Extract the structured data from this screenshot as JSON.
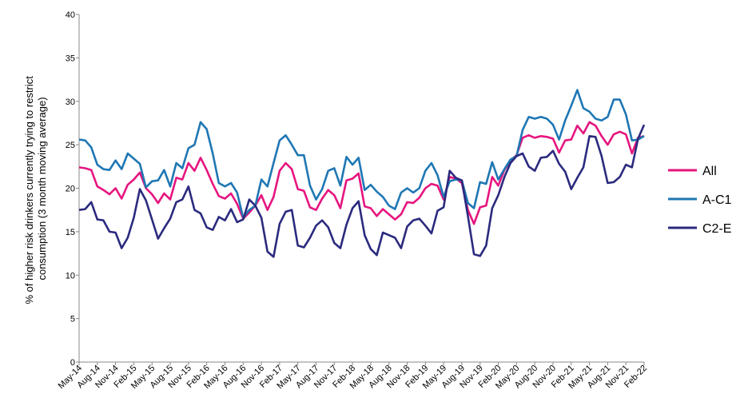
{
  "chart_data": {
    "type": "line",
    "ylabel": "% of higher risk drinkers currently trying to restrict consumption (3 month moving average)",
    "ylabel_lines": [
      "% of higher risk drinkers currently trying to restrict",
      "consumption (3 month moving average)"
    ],
    "ylim": [
      0,
      40
    ],
    "yticks": [
      0,
      5,
      10,
      15,
      20,
      25,
      30,
      35,
      40
    ],
    "x_tick_labels": [
      "May-14",
      "Aug-14",
      "Nov-14",
      "Feb-15",
      "May-15",
      "Aug-15",
      "Nov-15",
      "Feb-16",
      "May-16",
      "Aug-16",
      "Nov-16",
      "Feb-17",
      "May-17",
      "Aug-17",
      "Nov-17",
      "Feb-18",
      "May-18",
      "Aug-18",
      "Nov-18",
      "Feb-19",
      "May-19",
      "Aug-19",
      "Nov-19",
      "Feb-20",
      "May-20",
      "Aug-20",
      "Nov-20",
      "Feb-21",
      "May-21",
      "Aug-21",
      "Nov-21",
      "Feb-22"
    ],
    "x": [
      "May-14",
      "Jun-14",
      "Jul-14",
      "Aug-14",
      "Sep-14",
      "Oct-14",
      "Nov-14",
      "Dec-14",
      "Jan-15",
      "Feb-15",
      "Mar-15",
      "Apr-15",
      "May-15",
      "Jun-15",
      "Jul-15",
      "Aug-15",
      "Sep-15",
      "Oct-15",
      "Nov-15",
      "Dec-15",
      "Jan-16",
      "Feb-16",
      "Mar-16",
      "Apr-16",
      "May-16",
      "Jun-16",
      "Jul-16",
      "Aug-16",
      "Sep-16",
      "Oct-16",
      "Nov-16",
      "Dec-16",
      "Jan-17",
      "Feb-17",
      "Mar-17",
      "Apr-17",
      "May-17",
      "Jun-17",
      "Jul-17",
      "Aug-17",
      "Sep-17",
      "Oct-17",
      "Nov-17",
      "Dec-17",
      "Jan-18",
      "Feb-18",
      "Mar-18",
      "Apr-18",
      "May-18",
      "Jun-18",
      "Jul-18",
      "Aug-18",
      "Sep-18",
      "Oct-18",
      "Nov-18",
      "Dec-18",
      "Jan-19",
      "Feb-19",
      "Mar-19",
      "Apr-19",
      "May-19",
      "Jun-19",
      "Jul-19",
      "Aug-19",
      "Sep-19",
      "Oct-19",
      "Nov-19",
      "Dec-19",
      "Jan-20",
      "Feb-20",
      "Mar-20",
      "Apr-20",
      "May-20",
      "Jun-20",
      "Jul-20",
      "Aug-20",
      "Sep-20",
      "Oct-20",
      "Nov-20",
      "Dec-20",
      "Jan-21",
      "Feb-21",
      "Mar-21",
      "Apr-21",
      "May-21",
      "Jun-21",
      "Jul-21",
      "Aug-21",
      "Sep-21",
      "Oct-21",
      "Nov-21",
      "Dec-21",
      "Jan-22",
      "Feb-22"
    ],
    "series": [
      {
        "name": "All",
        "color": "#e6157f",
        "values": [
          22.4,
          22.3,
          22.1,
          20.2,
          19.8,
          19.3,
          20.0,
          18.8,
          20.4,
          21.0,
          21.8,
          20.0,
          19.3,
          18.3,
          19.4,
          18.7,
          21.2,
          21.0,
          22.9,
          22.0,
          23.5,
          22.1,
          20.5,
          19.1,
          18.8,
          19.4,
          18.2,
          16.5,
          17.2,
          18.0,
          19.2,
          17.5,
          19.0,
          22.0,
          22.9,
          22.2,
          19.9,
          19.7,
          17.8,
          17.5,
          18.8,
          19.8,
          19.2,
          17.7,
          20.9,
          21.1,
          21.7,
          17.9,
          17.7,
          16.8,
          17.6,
          17.0,
          16.4,
          17.0,
          18.4,
          18.3,
          18.9,
          20.0,
          20.5,
          20.3,
          18.7,
          21.3,
          21.1,
          20.6,
          17.5,
          15.9,
          17.8,
          18.0,
          21.3,
          20.3,
          22.1,
          23.2,
          23.8,
          25.8,
          26.1,
          25.8,
          26.0,
          25.9,
          25.7,
          24.1,
          25.5,
          25.6,
          27.2,
          26.3,
          27.6,
          27.2,
          26.0,
          25.0,
          26.2,
          26.5,
          26.2,
          24.0,
          25.8,
          26.0
        ]
      },
      {
        "name": "A-C1",
        "color": "#1f77b4",
        "values": [
          25.6,
          25.5,
          24.7,
          22.7,
          22.2,
          22.1,
          23.2,
          22.2,
          24.0,
          23.4,
          22.8,
          20.1,
          20.8,
          20.9,
          22.1,
          20.2,
          22.9,
          22.3,
          24.6,
          25.0,
          27.6,
          26.8,
          24.0,
          20.6,
          20.2,
          20.6,
          19.5,
          16.6,
          17.5,
          18.0,
          21.0,
          20.2,
          22.9,
          25.5,
          26.1,
          25.0,
          23.8,
          23.8,
          20.3,
          18.7,
          19.9,
          22.0,
          22.3,
          20.3,
          23.6,
          22.7,
          23.5,
          19.8,
          20.4,
          19.6,
          19.0,
          18.0,
          17.6,
          19.5,
          20.0,
          19.5,
          20.0,
          22.0,
          22.9,
          21.5,
          19.0,
          20.8,
          21.0,
          20.9,
          18.3,
          17.7,
          20.7,
          20.5,
          23.0,
          21.0,
          22.2,
          23.3,
          23.7,
          26.7,
          28.2,
          28.0,
          28.2,
          28.0,
          27.3,
          25.6,
          27.8,
          29.5,
          31.3,
          29.2,
          28.8,
          28.0,
          27.8,
          28.2,
          30.2,
          30.2,
          28.5,
          25.5,
          25.6,
          26.0
        ]
      },
      {
        "name": "C2-E",
        "color": "#2b2a7e",
        "values": [
          17.5,
          17.6,
          18.4,
          16.4,
          16.3,
          15.0,
          14.9,
          13.1,
          14.3,
          16.6,
          19.9,
          18.6,
          16.4,
          14.2,
          15.4,
          16.5,
          18.4,
          18.7,
          20.2,
          17.5,
          17.1,
          15.5,
          15.2,
          16.7,
          16.3,
          17.6,
          16.1,
          16.4,
          18.7,
          18.0,
          16.6,
          12.7,
          12.1,
          15.9,
          17.3,
          17.5,
          13.4,
          13.2,
          14.3,
          15.7,
          16.3,
          15.5,
          13.7,
          13.1,
          15.8,
          17.7,
          18.5,
          14.6,
          13.0,
          12.3,
          14.9,
          14.6,
          14.3,
          13.1,
          15.6,
          16.3,
          16.5,
          15.7,
          14.8,
          17.4,
          17.8,
          22.0,
          21.2,
          20.9,
          16.8,
          12.4,
          12.2,
          13.4,
          17.7,
          19.2,
          21.3,
          22.9,
          23.7,
          24.0,
          22.5,
          22.0,
          23.5,
          23.6,
          24.3,
          22.8,
          21.9,
          19.9,
          21.2,
          22.4,
          26.0,
          25.9,
          23.7,
          20.6,
          20.7,
          21.3,
          22.7,
          22.4,
          25.7,
          27.3
        ]
      }
    ],
    "legend_placement": "right",
    "grid": false
  }
}
